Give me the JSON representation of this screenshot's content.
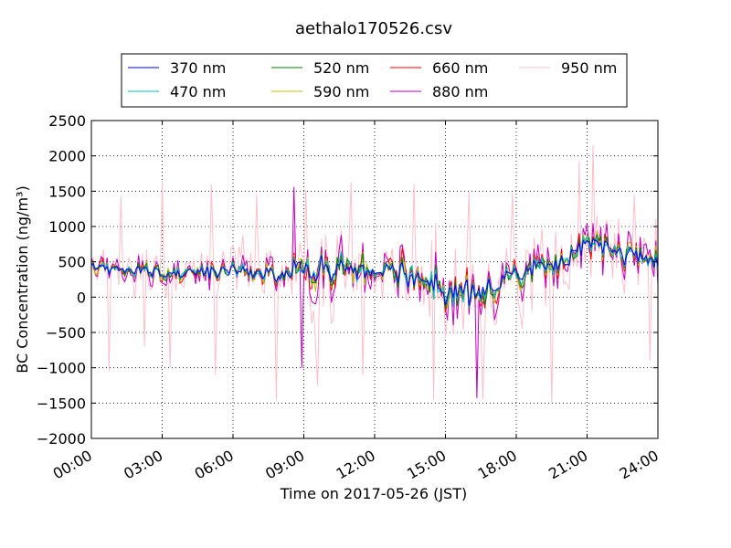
{
  "chart_data": {
    "type": "line",
    "title": "aethalo170526.csv",
    "xlabel": "Time on 2017-05-26 (JST)",
    "ylabel": "BC Concentration (ng/m³)",
    "xlim": [
      "2017-05-26 00:00",
      "2017-05-27 00:00"
    ],
    "ylim": [
      -2000,
      2500
    ],
    "x_ticks": [
      "00:00",
      "03:00",
      "06:00",
      "09:00",
      "12:00",
      "15:00",
      "18:00",
      "21:00",
      "24:00"
    ],
    "y_ticks": [
      -2000,
      -1500,
      -1000,
      -500,
      0,
      500,
      1000,
      1500,
      2000,
      2500
    ],
    "grid": true,
    "legend_position": "top",
    "sample_interval_minutes": 5,
    "series": [
      {
        "name": "370 nm",
        "color": "#0000ff",
        "amplitude": 0.35
      },
      {
        "name": "470 nm",
        "color": "#00bfbf",
        "amplitude": 0.42
      },
      {
        "name": "520 nm",
        "color": "#008000",
        "amplitude": 0.48
      },
      {
        "name": "590 nm",
        "color": "#bfbf00",
        "amplitude": 0.55
      },
      {
        "name": "660 nm",
        "color": "#ff0000",
        "amplitude": 0.65
      },
      {
        "name": "880 nm",
        "color": "#bf00bf",
        "amplitude": 1.0
      },
      {
        "name": "950 nm",
        "color": "#ffc0cb",
        "amplitude": 1.6
      }
    ],
    "baseline_trend": [
      {
        "time": "00:00",
        "value": 430
      },
      {
        "time": "03:00",
        "value": 360
      },
      {
        "time": "06:00",
        "value": 360
      },
      {
        "time": "08:00",
        "value": 300
      },
      {
        "time": "09:00",
        "value": 460
      },
      {
        "time": "12:00",
        "value": 380
      },
      {
        "time": "14:00",
        "value": 300
      },
      {
        "time": "15:00",
        "value": 60
      },
      {
        "time": "16:30",
        "value": 80
      },
      {
        "time": "18:00",
        "value": 330
      },
      {
        "time": "20:00",
        "value": 500
      },
      {
        "time": "21:00",
        "value": 800
      },
      {
        "time": "22:00",
        "value": 680
      },
      {
        "time": "24:00",
        "value": 470
      }
    ],
    "noise_envelope": [
      {
        "time": "00:00",
        "value": 200
      },
      {
        "time": "08:00",
        "value": 220
      },
      {
        "time": "09:00",
        "value": 500
      },
      {
        "time": "11:30",
        "value": 420
      },
      {
        "time": "12:00",
        "value": 260
      },
      {
        "time": "13:00",
        "value": 380
      },
      {
        "time": "15:00",
        "value": 420
      },
      {
        "time": "18:00",
        "value": 340
      },
      {
        "time": "21:00",
        "value": 330
      },
      {
        "time": "24:00",
        "value": 320
      }
    ],
    "spikes_950nm": [
      {
        "time": "00:45",
        "value": -1050
      },
      {
        "time": "01:15",
        "value": 1430
      },
      {
        "time": "02:15",
        "value": -700
      },
      {
        "time": "03:00",
        "value": 1650
      },
      {
        "time": "03:20",
        "value": -1000
      },
      {
        "time": "05:05",
        "value": 1600
      },
      {
        "time": "05:15",
        "value": -1100
      },
      {
        "time": "07:00",
        "value": 1450
      },
      {
        "time": "07:50",
        "value": -1460
      },
      {
        "time": "09:05",
        "value": 1520
      },
      {
        "time": "09:35",
        "value": -1250
      },
      {
        "time": "11:00",
        "value": 1630
      },
      {
        "time": "11:30",
        "value": -1100
      },
      {
        "time": "13:40",
        "value": 1600
      },
      {
        "time": "14:30",
        "value": -1450
      },
      {
        "time": "16:00",
        "value": 1500
      },
      {
        "time": "16:35",
        "value": -1450
      },
      {
        "time": "17:50",
        "value": 1470
      },
      {
        "time": "19:30",
        "value": -1500
      },
      {
        "time": "20:40",
        "value": 1920
      },
      {
        "time": "21:15",
        "value": 2150
      },
      {
        "time": "23:00",
        "value": 1450
      },
      {
        "time": "23:40",
        "value": -900
      }
    ],
    "spikes_880nm": [
      {
        "time": "08:35",
        "value": 1560
      },
      {
        "time": "08:55",
        "value": -1000
      },
      {
        "time": "16:20",
        "value": -1430
      },
      {
        "time": "21:00",
        "value": 1050
      }
    ]
  }
}
